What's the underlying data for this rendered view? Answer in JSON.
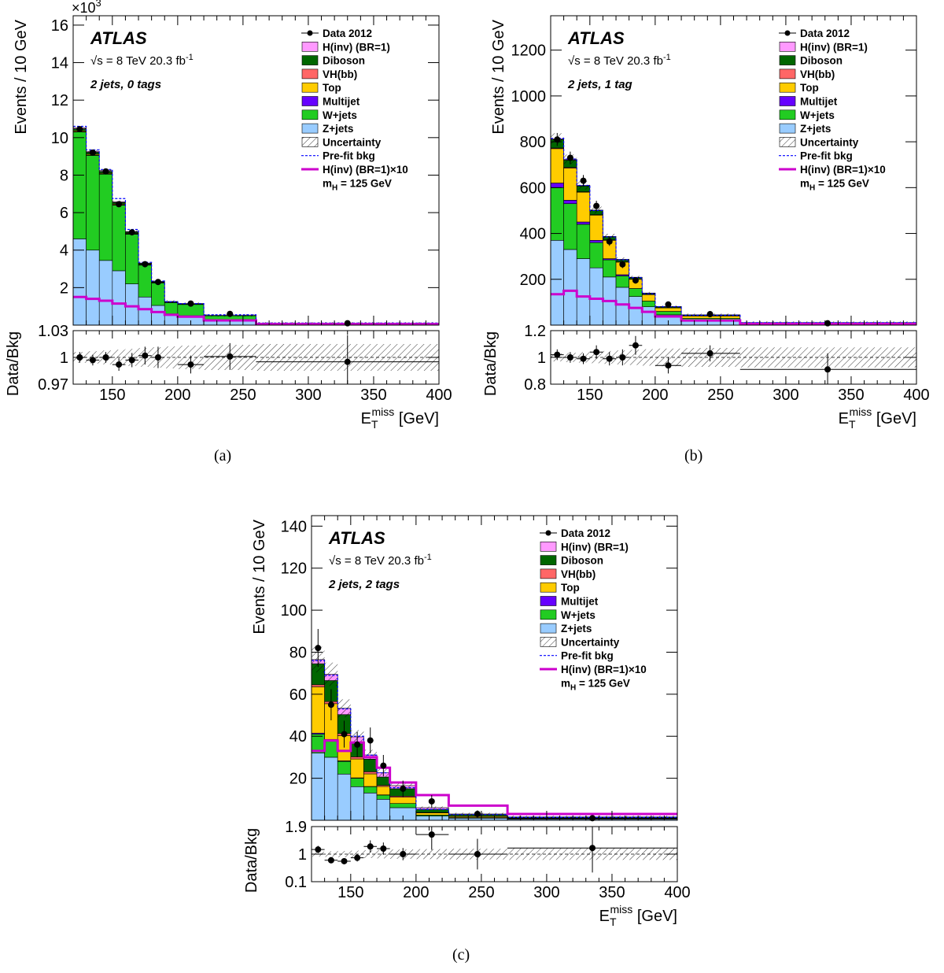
{
  "ui": {
    "x_unit": "[GeV]"
  },
  "colors": {
    "Zjets": "#99ccff",
    "Wjets": "#22cc22",
    "Multijet": "#6600ff",
    "Top": "#ffcc00",
    "VHbb": "#ff6666",
    "Diboson": "#006600",
    "Hinv": "#ff99ff",
    "Hinv_x10": "#cc00cc",
    "prefit": "#0000ff"
  },
  "legend": {
    "data": "Data 2012",
    "hinv": "H(inv) (BR=1)",
    "diboson": "Diboson",
    "vhbb": "VH(bb)",
    "top": "Top",
    "multijet": "Multijet",
    "wjets": "W+jets",
    "zjets": "Z+jets",
    "unc": "Uncertainty",
    "prefit": "Pre-fit bkg",
    "hinv10": "H(inv) (BR=1)×10",
    "mh": "m_H = 125 GeV"
  },
  "chart_data": [
    {
      "type": "bar",
      "caption": "(a)",
      "atlas": "ATLAS",
      "energy": "√s = 8 TeV  20.3 fb-1",
      "category": "2 jets, 0 tags",
      "ylabel": "Events / 10 GeV",
      "ratio_ylabel": "Data/Bkg",
      "xlabel": "E_T^miss",
      "multiplier": "×10^3",
      "xlim": [
        120,
        400
      ],
      "ylim": [
        0,
        16.5
      ],
      "yticks": [
        2,
        4,
        6,
        8,
        10,
        12,
        14,
        16
      ],
      "ratio_ylim": [
        0.97,
        1.03
      ],
      "ratio_yticks": [
        "0.97",
        "1",
        "1.03"
      ],
      "xticks": [
        150,
        200,
        250,
        300,
        350,
        400
      ],
      "bins": [
        120,
        130,
        140,
        150,
        160,
        170,
        180,
        190,
        200,
        220,
        260,
        400
      ],
      "stack": {
        "Zjets": [
          4.6,
          4.0,
          3.45,
          2.9,
          2.2,
          1.5,
          1.05,
          0.6,
          0.5,
          0.25,
          0.05
        ],
        "Wjets": [
          5.7,
          5.05,
          4.6,
          3.5,
          2.65,
          1.7,
          1.2,
          0.6,
          0.6,
          0.25,
          0.05
        ],
        "Multijet": [
          0.02,
          0.02,
          0.02,
          0.02,
          0.02,
          0.01,
          0.01,
          0.01,
          0.0,
          0.0,
          0.0
        ],
        "Top": [
          0.05,
          0.05,
          0.04,
          0.04,
          0.03,
          0.02,
          0.02,
          0.01,
          0.01,
          0.0,
          0.0
        ],
        "VHbb": [
          0.0,
          0.0,
          0.0,
          0.0,
          0.0,
          0.0,
          0.0,
          0.0,
          0.0,
          0.0,
          0.0
        ],
        "Diboson": [
          0.1,
          0.1,
          0.09,
          0.08,
          0.06,
          0.05,
          0.03,
          0.02,
          0.02,
          0.01,
          0.0
        ],
        "Hinv": [
          0.05,
          0.05,
          0.04,
          0.04,
          0.03,
          0.03,
          0.02,
          0.02,
          0.02,
          0.01,
          0.0
        ]
      },
      "prefit": [
        10.6,
        9.35,
        8.3,
        6.75,
        5.1,
        3.35,
        2.35,
        1.25,
        1.15,
        0.55,
        0.11
      ],
      "hinv_x10": [
        1.5,
        1.4,
        1.3,
        1.15,
        1.0,
        0.85,
        0.7,
        0.55,
        0.45,
        0.25,
        0.05
      ],
      "data": {
        "x": [
          125,
          135,
          145,
          155,
          165,
          175,
          185,
          210,
          240,
          330
        ],
        "y": [
          10.45,
          9.2,
          8.2,
          6.45,
          4.95,
          3.25,
          2.3,
          1.15,
          0.6,
          0.1
        ],
        "ratio": [
          1.0,
          0.997,
          1.0,
          0.992,
          0.997,
          1.002,
          1.0,
          0.992,
          1.001,
          0.995
        ],
        "ratio_err": [
          0.006,
          0.006,
          0.006,
          0.007,
          0.008,
          0.01,
          0.012,
          0.01,
          0.015,
          0.03
        ]
      },
      "unc_band": 0.006
    },
    {
      "type": "bar",
      "caption": "(b)",
      "atlas": "ATLAS",
      "energy": "√s = 8 TeV  20.3 fb-1",
      "category": "2 jets, 1 tag",
      "ylabel": "Events / 10 GeV",
      "ratio_ylabel": "Data/Bkg",
      "xlabel": "E_T^miss",
      "multiplier": "",
      "xlim": [
        120,
        400
      ],
      "ylim": [
        0,
        1350
      ],
      "yticks": [
        200,
        400,
        600,
        800,
        1000,
        1200
      ],
      "ratio_ylim": [
        0.8,
        1.2
      ],
      "ratio_yticks": [
        "0.8",
        "1",
        "1.2"
      ],
      "xticks": [
        150,
        200,
        250,
        300,
        350,
        400
      ],
      "bins": [
        120,
        130,
        140,
        150,
        160,
        170,
        180,
        190,
        200,
        220,
        265,
        400
      ],
      "stack": {
        "Zjets": [
          370,
          330,
          290,
          250,
          210,
          165,
          125,
          80,
          45,
          20,
          5
        ],
        "Wjets": [
          230,
          200,
          150,
          110,
          75,
          50,
          35,
          25,
          15,
          10,
          2
        ],
        "Multijet": [
          20,
          15,
          10,
          10,
          5,
          5,
          0,
          0,
          0,
          0,
          0
        ],
        "Top": [
          150,
          140,
          130,
          110,
          80,
          55,
          40,
          28,
          15,
          10,
          3
        ],
        "VHbb": [
          3,
          3,
          2,
          2,
          2,
          1,
          1,
          1,
          1,
          1,
          0
        ],
        "Diboson": [
          37,
          32,
          25,
          18,
          13,
          9,
          7,
          5,
          4,
          3,
          1
        ],
        "Hinv": [
          3,
          3,
          3,
          2,
          2,
          2,
          1,
          1,
          1,
          1,
          0
        ]
      },
      "prefit": [
        815,
        725,
        610,
        500,
        385,
        285,
        207,
        137,
        80,
        43,
        11
      ],
      "hinv_x10": [
        135,
        150,
        125,
        115,
        105,
        90,
        75,
        58,
        38,
        20,
        5
      ],
      "data": {
        "x": [
          125,
          135,
          145,
          155,
          165,
          175,
          185,
          210,
          242,
          332
        ],
        "y": [
          810,
          730,
          630,
          520,
          365,
          265,
          195,
          90,
          48,
          8
        ],
        "ratio": [
          1.02,
          1.0,
          0.99,
          1.04,
          0.99,
          1.0,
          1.09,
          0.94,
          1.03,
          0.91
        ],
        "ratio_err": [
          0.04,
          0.04,
          0.04,
          0.05,
          0.05,
          0.06,
          0.07,
          0.06,
          0.06,
          0.12
        ]
      },
      "unc_band": 0.03
    },
    {
      "type": "bar",
      "caption": "(c)",
      "atlas": "ATLAS",
      "energy": "√s = 8 TeV  20.3 fb-1",
      "category": "2 jets, 2 tags",
      "ylabel": "Events / 10 GeV",
      "ratio_ylabel": "Data/Bkg",
      "xlabel": "E_T^miss",
      "multiplier": "",
      "xlim": [
        120,
        400
      ],
      "ylim": [
        0,
        145
      ],
      "yticks": [
        20,
        40,
        60,
        80,
        100,
        120,
        140
      ],
      "ratio_ylim": [
        0.1,
        1.9
      ],
      "ratio_yticks": [
        "0.1",
        "1",
        "1.9"
      ],
      "xticks": [
        150,
        200,
        250,
        300,
        350,
        400
      ],
      "bins": [
        120,
        130,
        140,
        150,
        160,
        170,
        180,
        200,
        225,
        270,
        400
      ],
      "stack": {
        "Zjets": [
          32,
          30,
          22,
          16,
          13,
          10,
          6,
          2,
          1,
          0.5
        ],
        "Wjets": [
          9,
          8,
          6,
          4,
          3,
          2,
          2,
          0.5,
          0.3,
          0.2
        ],
        "Multijet": [
          0.5,
          0.5,
          0.3,
          0.2,
          0.1,
          0.1,
          0,
          0,
          0,
          0
        ],
        "Top": [
          22,
          17,
          12,
          9,
          6,
          4,
          3,
          1,
          0.5,
          0.2
        ],
        "VHbb": [
          1,
          1,
          1,
          1,
          1,
          0.5,
          0.5,
          0.2,
          0.1,
          0.1
        ],
        "Diboson": [
          10,
          10,
          9,
          7,
          6,
          4,
          3.5,
          1.5,
          0.8,
          0.4
        ],
        "Hinv": [
          2,
          3,
          3,
          2.5,
          2,
          2,
          1.5,
          0.8,
          0.3,
          0.2
        ]
      },
      "prefit": [
        76,
        69,
        53,
        40,
        31,
        22.6,
        15.5,
        5.2,
        2.7,
        1.4
      ],
      "hinv_x10": [
        33,
        38,
        33,
        37,
        30,
        25,
        18,
        12,
        7,
        3
      ],
      "data": {
        "x": [
          125,
          135,
          145,
          155,
          165,
          175,
          190,
          212,
          247,
          335
        ],
        "y": [
          82,
          55,
          41,
          36,
          38,
          26,
          15,
          9,
          3,
          1
        ],
        "ratio": [
          1.15,
          0.8,
          0.77,
          0.88,
          1.25,
          1.18,
          1.0,
          1.64,
          1.0,
          1.2
        ],
        "ratio_err": [
          0.12,
          0.1,
          0.1,
          0.12,
          0.2,
          0.2,
          0.2,
          0.5,
          0.5,
          0.8
        ]
      },
      "unc_band": 0.08
    }
  ]
}
